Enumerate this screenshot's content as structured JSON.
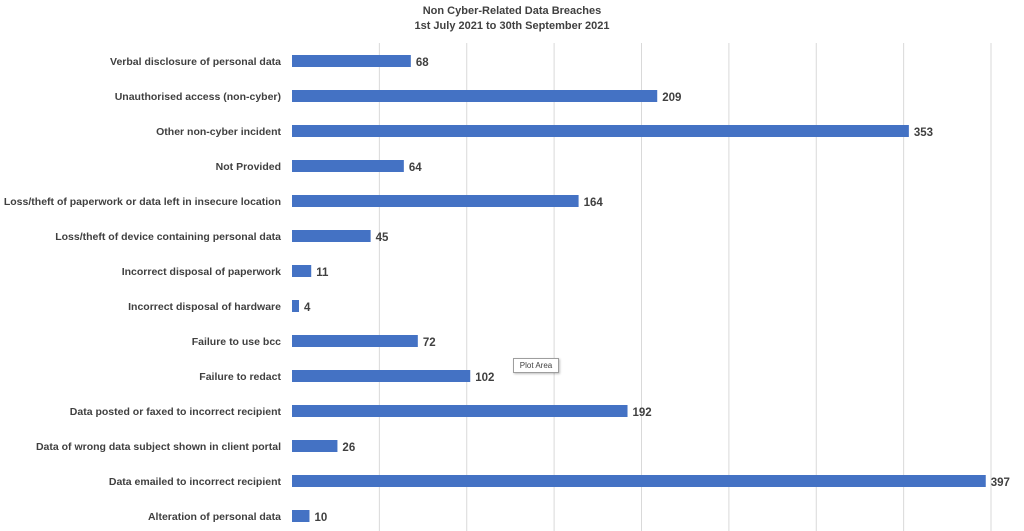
{
  "chart_data": {
    "type": "bar",
    "orientation": "horizontal",
    "title": "Non Cyber-Related Data Breaches",
    "subtitle": "1st July 2021 to 30th September 2021",
    "categories": [
      "Verbal disclosure of personal data",
      "Unauthorised access (non-cyber)",
      "Other non-cyber incident",
      "Not Provided",
      "Loss/theft of paperwork or data left in insecure location",
      "Loss/theft of device containing personal data",
      "Incorrect disposal of paperwork",
      "Incorrect disposal of hardware",
      "Failure to use bcc",
      "Failure to redact",
      "Data posted or faxed to incorrect recipient",
      "Data of wrong data subject shown in client portal",
      "Data emailed to incorrect recipient",
      "Alteration of personal data"
    ],
    "values": [
      68,
      209,
      353,
      64,
      164,
      45,
      11,
      4,
      72,
      102,
      192,
      26,
      397,
      10
    ],
    "xlim": [
      0,
      400
    ],
    "grid": true,
    "bar_color": "#4472C4"
  },
  "tooltip": "Plot Area"
}
